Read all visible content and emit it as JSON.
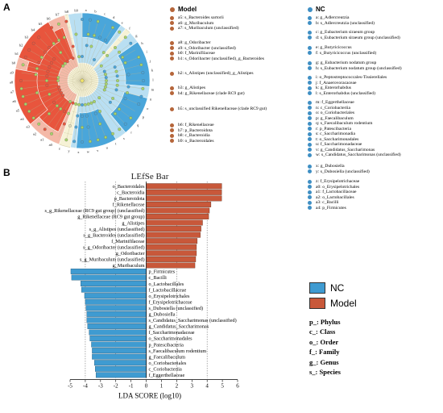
{
  "panel_a": {
    "letter": "A"
  },
  "panel_b": {
    "letter": "B"
  },
  "legend_a": {
    "model_title": "Model",
    "nc_title": "NC",
    "model_items": [
      "a5: s_Bacteroides sartorii",
      "a6: g_Muribaculum",
      "a7: s_Muribaculum (unclassified)",
      "a8: g_Odoribacter",
      "a9: s_Odoribacter (unclassified)",
      "b0: f_Marinifilaceae",
      "b1: s_Odoribacter (unclassified)_g_Bacteroides",
      "b2: s_Alistipes (unclassified)_g_Alistipes",
      "b3: g_Alistipes",
      "b4: g_Rikenellaceae (clade RC9 gut)",
      "b5: s_unclassified Rikenellaceae (clade RC9 gut)",
      "b6: f_Rikenellaceae",
      "b7: p_Bacteroidota",
      "b8: c_Bacteroidia",
      "b9: o_Bacteroidales"
    ],
    "nc_items": [
      "a: g_Adlercreutzia",
      "b: s_Adlercreutzia (unclassified)",
      "c: g_Eubacterium siraeum group",
      "d: s_Eubacterium siraeum group (unclassified)",
      "e: g_Butyricicoccus",
      "f: s_Butyricicoccus (unclassified)",
      "g: g_Eubacterium nodatum group",
      "h: s_Eubacterium nodatum group (unclassified)",
      "i: o_Peptostreptococcales-Tissierellales",
      "j: f_Anaerovoracaceae",
      "k: g_Enterorhabdus",
      "l: s_Enterorhabdus    (unclassified)",
      "m: f_Eggerthellaceae",
      "n: c_Coriobacteriia",
      "o: o_Coriobacteriales",
      "p: g_Faecalibaculum",
      "q: s_Faecalibaculum rodentium",
      "r: p_Patescibacteria",
      "s: c_Saccharimonadia",
      "t: o_Saccharimonadales",
      "u: f_Saccharimonadaceae",
      "v: g_Candidatus_Saccharimonas",
      "w: s_Candidatus_Saccharimonas (unclassified)",
      "x: g_Dubosiella",
      "y: s_Dubosiella (unclassified)",
      "z: f_Erysipelotrichaceae",
      "a0: o_Erysipelotrichales",
      "a1: f_Lactobacillaceae",
      "a2: o_Lactobacillales",
      "a3: c_Bacilli",
      "a4: p_Firmicutes"
    ]
  },
  "cladogram": {
    "labels": [
      "a",
      "b",
      "c",
      "d",
      "e",
      "f",
      "g",
      "h",
      "i",
      "j",
      "k",
      "l",
      "m",
      "n",
      "o",
      "p",
      "q",
      "r",
      "s",
      "t",
      "u",
      "v",
      "w",
      "x",
      "y",
      "z",
      "a0",
      "a1",
      "a2",
      "a3",
      "a4",
      "a5",
      "a6",
      "a7",
      "a8",
      "a9",
      "b0",
      "b1",
      "b2",
      "b3",
      "b4",
      "b5",
      "b6",
      "b7",
      "b8",
      "b9"
    ],
    "colors": {
      "model": "#e8553d",
      "nc": "#4aa6da",
      "model_light": "#f4b9a8",
      "nc_light": "#b9dff2",
      "neutral": "#f6f2d6"
    }
  },
  "chart_data": {
    "type": "bar",
    "orientation": "horizontal",
    "title": "LEfSe Bar",
    "xlabel": "LDA SCORE (log10)",
    "xlim": [
      -5,
      6
    ],
    "xticks": [
      -5,
      -4,
      -3,
      -2,
      -1,
      0,
      1,
      2,
      3,
      4,
      5,
      6
    ],
    "series": [
      {
        "name": "Model",
        "color": "#c8583a",
        "categories": [
          "o_Bacteroidales",
          "c_Bacteroidia",
          "p_Bacteroidota",
          "f_Rikenellaceae",
          "s_g_Rikenellaceae (RC9 gut group) (unclassified)",
          "g_Rikenellaceae (RC9 gut group)",
          "g_Alistipes",
          "s_g_Alistipes (unclassified)",
          "s_g_Bacteroides (unclassified)",
          "f_Marinifilaceae",
          "s_g_Odoribacter (unclassified)",
          "g_Odoribacter",
          "s_g_Muribaculum (unclassified)",
          "g_Muribaculum"
        ],
        "values": [
          4.96,
          4.95,
          4.95,
          4.25,
          4.15,
          4.1,
          3.7,
          3.6,
          3.55,
          3.35,
          3.3,
          3.3,
          3.25,
          3.2
        ]
      },
      {
        "name": "NC",
        "color": "#3f9bd1",
        "categories": [
          "p_Firmicutes",
          "c_Bacilli",
          "o_Lactobacillales",
          "f_Lactobacillaceae",
          "o_Erysipelotrichales",
          "f_Erysipelotrichaceae",
          "s_Dubosiella (unclassified)",
          "g_Dubosiella",
          "s_Candidatus_Saccharimonas (unclassified)",
          "g_Candidatus_Saccharimonas",
          "f_Saccharimonadaceae",
          "o_Saccharimonadales",
          "p_Patescibacteria",
          "s_Faecalibaculum rodentium",
          "g_Faecalibaculum",
          "o_Coriobacteriales",
          "c_Coriobacteriia",
          "f_Eggerthellaceae"
        ],
        "values": [
          -4.95,
          -4.9,
          -4.3,
          -4.25,
          -4.05,
          -4.0,
          -3.95,
          -3.9,
          -3.9,
          -3.85,
          -3.75,
          -3.7,
          -3.6,
          -3.55,
          -3.55,
          -3.4,
          -3.35,
          -3.3
        ]
      }
    ]
  },
  "legend_b": {
    "items": [
      {
        "name": "NC",
        "color": "#3f9bd1"
      },
      {
        "name": "Model",
        "color": "#c8583a"
      }
    ],
    "taxonomy": [
      "p_: Phylus",
      "c_: Class",
      "o_: Order",
      "f_: Family",
      "g_: Genus",
      "s_: Species"
    ]
  }
}
